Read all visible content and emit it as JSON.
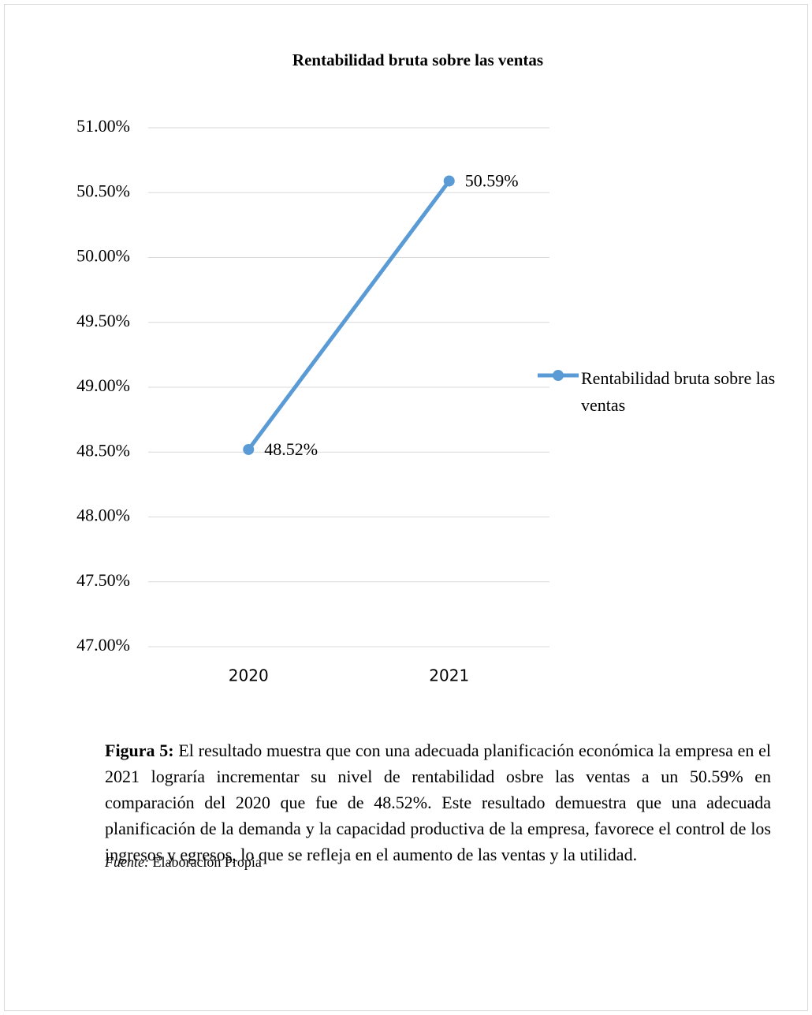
{
  "chart_data": {
    "type": "line",
    "title": "Rentabilidad bruta sobre las ventas",
    "categories": [
      "2020",
      "2021"
    ],
    "series": [
      {
        "name": "Rentabilidad bruta sobre las ventas",
        "color": "#5b9bd5",
        "values": [
          48.52,
          50.59
        ],
        "value_labels": [
          "48.52%",
          "50.59%"
        ]
      }
    ],
    "ylim": [
      47,
      51
    ],
    "yticks": [
      {
        "value": 47,
        "label": "47.00%"
      },
      {
        "value": 47.5,
        "label": "47.50%"
      },
      {
        "value": 48,
        "label": "48.00%"
      },
      {
        "value": 48.5,
        "label": "48.50%"
      },
      {
        "value": 49,
        "label": "49.00%"
      },
      {
        "value": 49.5,
        "label": "49.50%"
      },
      {
        "value": 50,
        "label": "50.00%"
      },
      {
        "value": 50.5,
        "label": "50.50%"
      },
      {
        "value": 51,
        "label": "51.00%"
      }
    ],
    "grid": true,
    "legend": "right"
  },
  "caption": {
    "label": "Figura 5:",
    "text": "El resultado muestra que con una adecuada planificación económica la empresa en el 2021 lograría incrementar su nivel de rentabilidad osbre las ventas a un 50.59% en comparación del 2020 que fue de 48.52%. Este resultado demuestra que una adecuada planificación de la demanda y la capacidad productiva de la empresa, favorece el control de los ingresos y egresos, lo que se refleja en el aumento de las ventas y la utilidad."
  },
  "source": {
    "label": "Fuente:",
    "text": "Elaboración Propia"
  }
}
